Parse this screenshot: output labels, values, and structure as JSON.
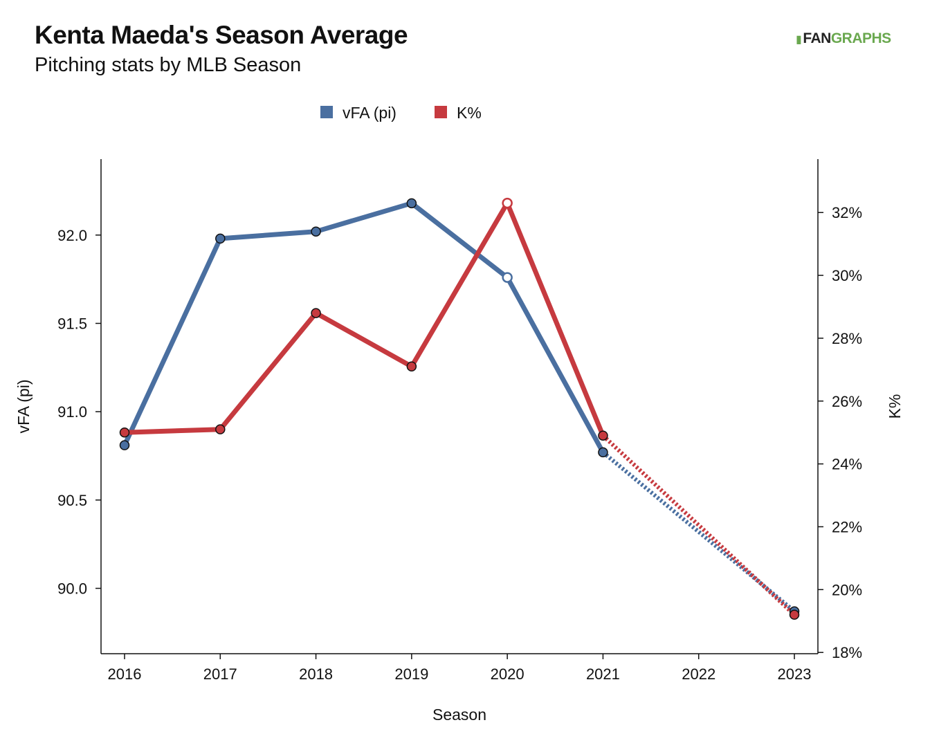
{
  "header": {
    "title": "Kenta Maeda's Season Average",
    "subtitle": "Pitching stats by MLB Season",
    "logo_text_dark": "FAN",
    "logo_text_green": "GRAPHS"
  },
  "chart_data": {
    "type": "line",
    "title": "Kenta Maeda's Season Average",
    "subtitle": "Pitching stats by MLB Season",
    "xlabel": "Season",
    "ylabel_left": "vFA (pi)",
    "ylabel_right": "K%",
    "x": [
      2016,
      2017,
      2018,
      2019,
      2020,
      2021,
      2022,
      2023
    ],
    "x_ticks": [
      "2016",
      "2017",
      "2018",
      "2019",
      "2020",
      "2021",
      "2022",
      "2023"
    ],
    "y_left_ticks": [
      "90.0",
      "90.5",
      "91.0",
      "91.5",
      "92.0"
    ],
    "y_left_tick_values": [
      90.0,
      90.5,
      91.0,
      91.5,
      92.0
    ],
    "y_left_range": [
      89.63,
      92.43
    ],
    "y_right_ticks": [
      "18%",
      "20%",
      "22%",
      "24%",
      "26%",
      "28%",
      "30%",
      "32%"
    ],
    "y_right_tick_values": [
      18,
      20,
      22,
      24,
      26,
      28,
      30,
      32
    ],
    "y_right_range": [
      17.96,
      33.7
    ],
    "legend_position": "top-center",
    "grid": false,
    "series": [
      {
        "name": "vFA (pi)",
        "axis": "left",
        "color": "#4a6fa0",
        "points": [
          {
            "x": 2016,
            "y": 90.81
          },
          {
            "x": 2017,
            "y": 91.98
          },
          {
            "x": 2018,
            "y": 92.02
          },
          {
            "x": 2019,
            "y": 92.18
          },
          {
            "x": 2020,
            "y": 91.76,
            "hollow": true
          },
          {
            "x": 2021,
            "y": 90.77
          },
          {
            "x": 2023,
            "y": 89.87,
            "projected": true
          }
        ]
      },
      {
        "name": "K%",
        "axis": "right",
        "color": "#c63a3f",
        "points": [
          {
            "x": 2016,
            "y": 25.0
          },
          {
            "x": 2017,
            "y": 25.1
          },
          {
            "x": 2018,
            "y": 28.8
          },
          {
            "x": 2019,
            "y": 27.1
          },
          {
            "x": 2020,
            "y": 32.3,
            "hollow": true
          },
          {
            "x": 2021,
            "y": 24.9
          },
          {
            "x": 2023,
            "y": 19.2,
            "projected": true
          }
        ]
      }
    ]
  }
}
